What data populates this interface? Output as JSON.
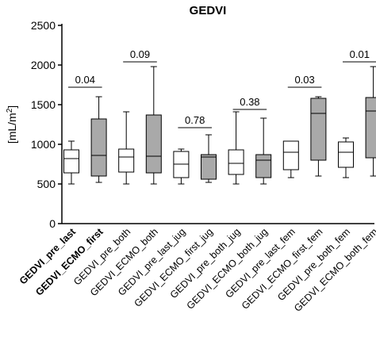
{
  "chart_data": {
    "type": "boxplot",
    "title": "GEDVI",
    "ylabel": "[mL/m²]",
    "ylabel_main": "[mL/m",
    "ylabel_sup": "2",
    "ylabel_end": "]",
    "ylim": [
      0,
      2500
    ],
    "yticks": [
      "0",
      "500",
      "1000",
      "1500",
      "2000",
      "2500"
    ],
    "grid": false,
    "colors": {
      "light_box": "#ffffff",
      "dark_box": "#a9a9a9",
      "stroke": "#000000"
    },
    "categories": [
      "GEDVI_pre_last",
      "GEDVI_ECMO_first",
      "GEDVI_pre_both",
      "GEDVI_ECMO_both",
      "GEDVI_pre_last_jug",
      "GEDVI_ECMO_first_jug",
      "GEDVI_pre_both_jug",
      "GEDVI_ECMO_both_jug",
      "GEDVI_pre_last_fem",
      "GEDVI_ECMO_first_fem",
      "GEDVI_pre_both_fem",
      "GEDVI_ECMO_both_fem"
    ],
    "bold_categories": [
      0,
      1
    ],
    "boxes": [
      {
        "min": 500,
        "q1": 640,
        "median": 820,
        "q3": 930,
        "max": 1040,
        "shade": "light"
      },
      {
        "min": 520,
        "q1": 600,
        "median": 860,
        "q3": 1320,
        "max": 1600,
        "shade": "dark"
      },
      {
        "min": 500,
        "q1": 650,
        "median": 840,
        "q3": 940,
        "max": 1410,
        "shade": "light"
      },
      {
        "min": 500,
        "q1": 640,
        "median": 850,
        "q3": 1370,
        "max": 1980,
        "shade": "dark"
      },
      {
        "min": 500,
        "q1": 580,
        "median": 750,
        "q3": 910,
        "max": 940,
        "shade": "light"
      },
      {
        "min": 520,
        "q1": 560,
        "median": 840,
        "q3": 870,
        "max": 1120,
        "shade": "dark"
      },
      {
        "min": 500,
        "q1": 620,
        "median": 760,
        "q3": 930,
        "max": 1410,
        "shade": "light"
      },
      {
        "min": 500,
        "q1": 580,
        "median": 800,
        "q3": 870,
        "max": 1330,
        "shade": "dark"
      },
      {
        "min": 580,
        "q1": 680,
        "median": 900,
        "q3": 1040,
        "max": 1040,
        "shade": "light"
      },
      {
        "min": 600,
        "q1": 800,
        "median": 1390,
        "q3": 1580,
        "max": 1600,
        "shade": "dark"
      },
      {
        "min": 580,
        "q1": 710,
        "median": 900,
        "q3": 1030,
        "max": 1080,
        "shade": "light"
      },
      {
        "min": 600,
        "q1": 830,
        "median": 1420,
        "q3": 1590,
        "max": 1980,
        "shade": "dark"
      }
    ],
    "annotations": [
      {
        "pair": [
          0,
          1
        ],
        "label": "0.04",
        "y": 1720
      },
      {
        "pair": [
          2,
          3
        ],
        "label": "0.09",
        "y": 2040
      },
      {
        "pair": [
          4,
          5
        ],
        "label": "0.78",
        "y": 1210
      },
      {
        "pair": [
          6,
          7
        ],
        "label": "0.38",
        "y": 1440
      },
      {
        "pair": [
          8,
          9
        ],
        "label": "0.03",
        "y": 1720
      },
      {
        "pair": [
          10,
          11
        ],
        "label": "0.01",
        "y": 2040
      }
    ]
  }
}
